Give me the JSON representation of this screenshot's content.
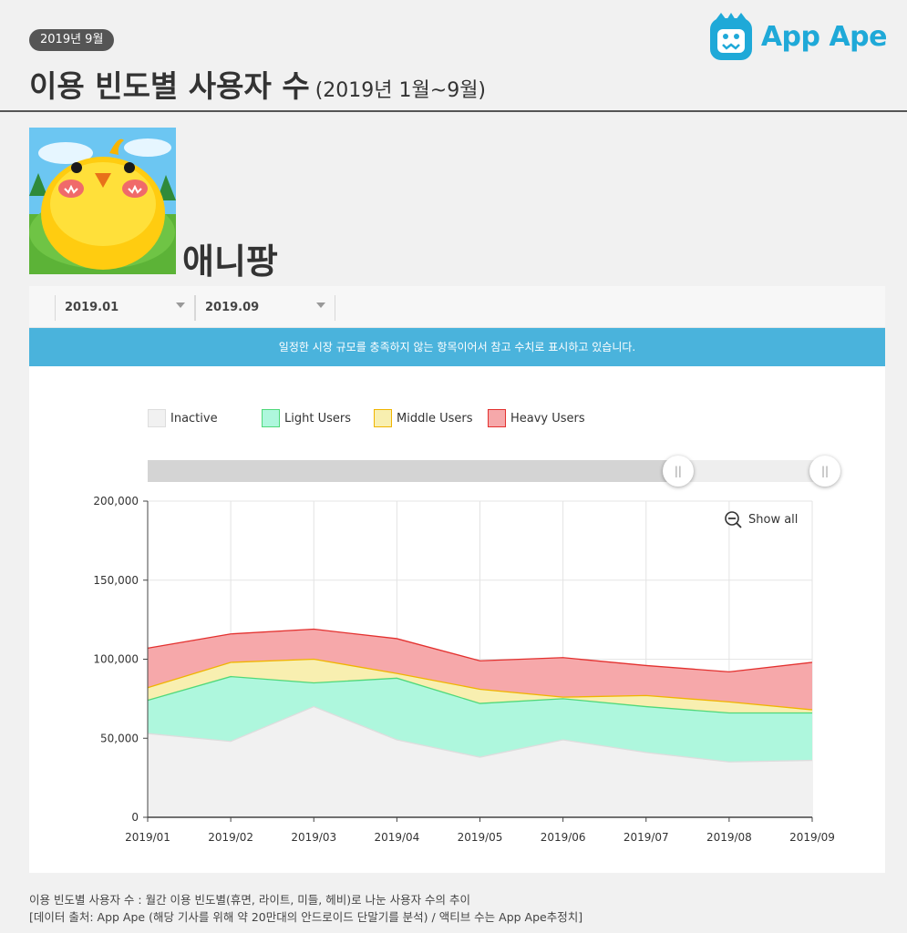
{
  "header": {
    "date_badge": "2019년 9월",
    "title": "이용 빈도별 사용자 수",
    "title_sub": "(2019년 1월~9월)",
    "logo_text": "App Ape",
    "logo_icon": "ape-face-icon",
    "brand_color": "#1fa9d8"
  },
  "app": {
    "name": "애니팡",
    "icon": "yellow-chick-app-icon"
  },
  "controls": {
    "start_month": "2019.01",
    "end_month": "2019.09",
    "notice": "일정한 시장 규모를 충족하지 않는 항목이어서 참고 수치로 표시하고 있습니다.",
    "show_all_label": "Show all",
    "range_start_fraction": 0.0,
    "range_end_fraction": 1.0,
    "notice_color": "#4ab3dc"
  },
  "chart_data": {
    "type": "area",
    "stacked": true,
    "x": [
      "2019/01",
      "2019/02",
      "2019/03",
      "2019/04",
      "2019/05",
      "2019/06",
      "2019/07",
      "2019/08",
      "2019/09"
    ],
    "ylim": [
      0,
      200000
    ],
    "yticks": [
      "0",
      "50,000",
      "100,000",
      "150,000",
      "200,000"
    ],
    "ytick_values": [
      0,
      50000,
      100000,
      150000,
      200000
    ],
    "grid": true,
    "legend_position": "top",
    "series": [
      {
        "name": "Inactive",
        "fill": "#f1f1f1",
        "stroke": "#dddddd",
        "values": [
          53000,
          48000,
          70000,
          49000,
          38000,
          49000,
          41000,
          35000,
          36000
        ]
      },
      {
        "name": "Light Users",
        "fill": "#aef7dd",
        "stroke": "#4fd87a",
        "values": [
          21000,
          41000,
          15000,
          39000,
          34000,
          26000,
          29000,
          31000,
          30000
        ]
      },
      {
        "name": "Middle Users",
        "fill": "#f8efb0",
        "stroke": "#f0b400",
        "values": [
          8000,
          9000,
          15000,
          3000,
          9000,
          1000,
          7000,
          7000,
          2000
        ]
      },
      {
        "name": "Heavy Users",
        "fill": "#f6a8aa",
        "stroke": "#e3312f",
        "values": [
          25000,
          18000,
          19000,
          22000,
          18000,
          25000,
          19000,
          19000,
          30000
        ]
      }
    ]
  },
  "footer": {
    "line1": "이용 빈도별 사용자 수 : 월간 이용 빈도별(휴면, 라이트, 미들, 헤비)로 나눈 사용자 수의 추이",
    "line2": "[데이터 출처: App Ape (해당 기사를 위해 약 20만대의 안드로이드 단말기를 분석) / 액티브 수는 App Ape추정치]"
  }
}
